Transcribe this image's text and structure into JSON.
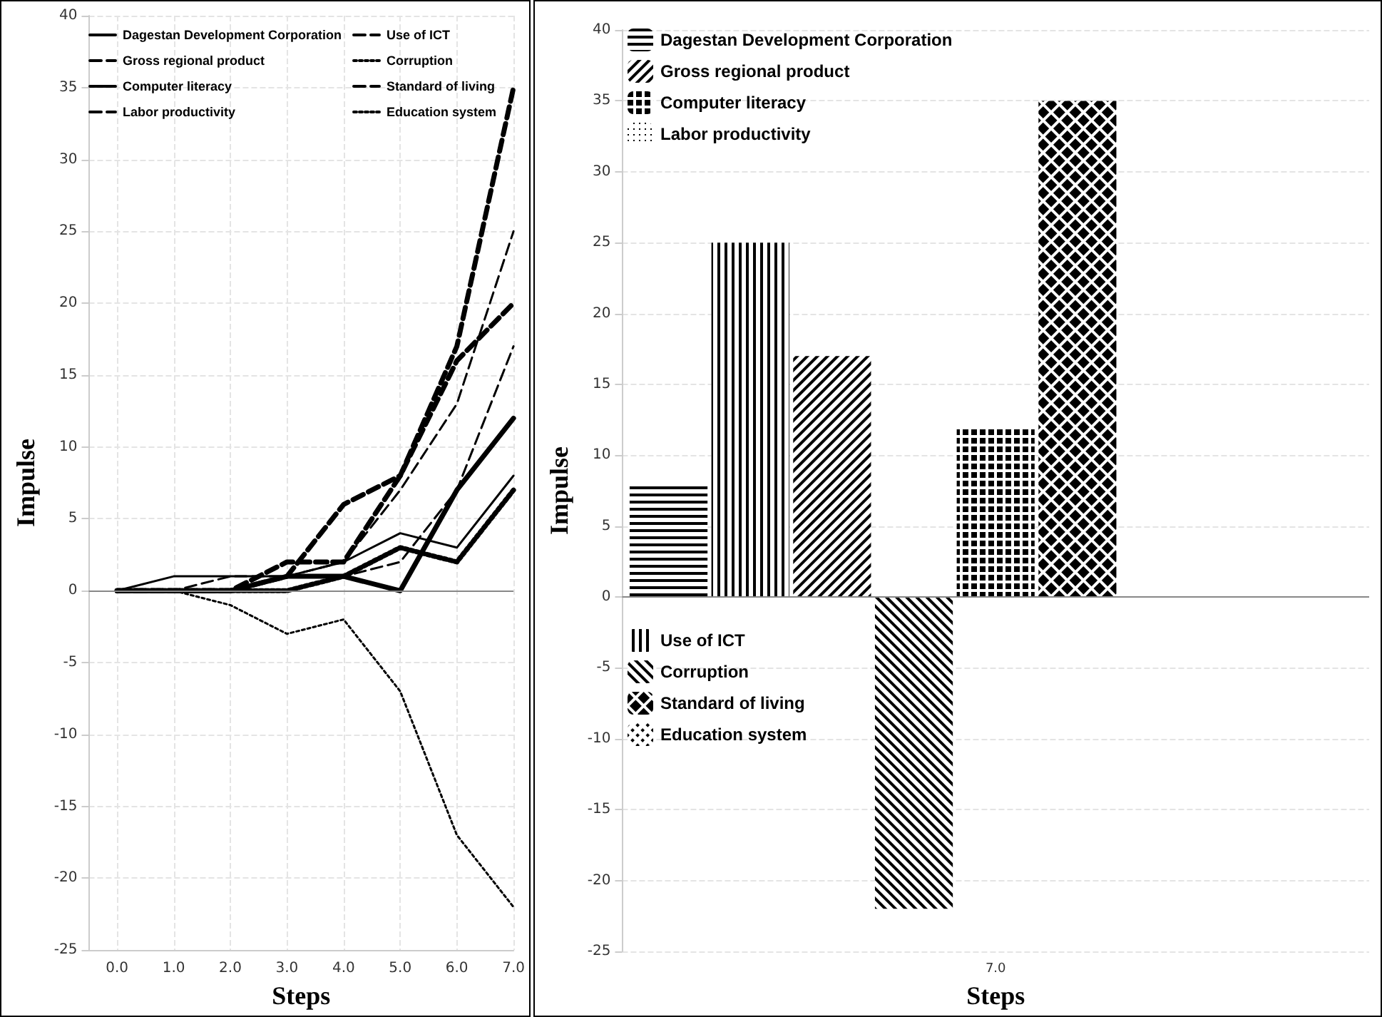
{
  "chart_data": [
    {
      "type": "line",
      "xlabel": "Steps",
      "ylabel": "Impulse",
      "x": [
        0,
        1,
        2,
        3,
        4,
        5,
        6,
        7
      ],
      "xlim": [
        -0.5,
        7
      ],
      "xticks": [
        {
          "value": 0,
          "label": "0.0"
        },
        {
          "value": 1,
          "label": "1.0"
        },
        {
          "value": 2,
          "label": "2.0"
        },
        {
          "value": 3,
          "label": "3.0"
        },
        {
          "value": 4,
          "label": "4.0"
        },
        {
          "value": 5,
          "label": "5.0"
        },
        {
          "value": 6,
          "label": "6.0"
        },
        {
          "value": 7,
          "label": "7.0"
        }
      ],
      "ylim": [
        -25,
        40
      ],
      "yticks": [
        -25,
        -20,
        -15,
        -10,
        -5,
        0,
        5,
        10,
        15,
        20,
        25,
        30,
        35,
        40
      ],
      "grid": true,
      "legend": "top left",
      "marker": "none",
      "series": [
        {
          "name": "Dagestan Development Corporation",
          "color": "#000000",
          "line_style": "solid",
          "values": [
            0,
            1,
            1,
            1,
            2,
            4,
            3,
            8
          ]
        },
        {
          "name": "Use of ICT",
          "color": "#000000",
          "line_style": "dashed",
          "values": [
            0,
            0,
            1,
            1,
            2,
            7,
            13,
            25
          ]
        },
        {
          "name": "Gross regional product",
          "color": "#000000",
          "line_style": "dashed",
          "values": [
            0,
            0,
            0,
            1,
            1,
            2,
            7,
            17
          ]
        },
        {
          "name": "Corruption",
          "color": "#000000",
          "line_style": "dotted",
          "values": [
            0,
            0,
            -1,
            -3,
            -2,
            -7,
            -17,
            -22
          ]
        },
        {
          "name": "Computer literacy",
          "color": "#000000",
          "line_style": "solid",
          "values": [
            0,
            0,
            0,
            1,
            1,
            0,
            7,
            12
          ]
        },
        {
          "name": "Standard of living",
          "color": "#000000",
          "line_style": "dashed",
          "values": [
            0,
            0,
            0,
            1,
            6,
            8,
            17,
            35
          ]
        },
        {
          "name": "Labor productivity",
          "color": "#000000",
          "line_style": "dashed",
          "values": [
            0,
            0,
            0,
            2,
            2,
            8,
            16,
            20
          ]
        },
        {
          "name": "Education system",
          "color": "#000000",
          "line_style": "dotted",
          "values": [
            0,
            0,
            0,
            0,
            1,
            3,
            2,
            7
          ]
        }
      ]
    },
    {
      "type": "bar",
      "xlabel": "Steps",
      "ylabel": "Impulse",
      "categories": [
        "7.0"
      ],
      "ylim": [
        -25,
        40
      ],
      "yticks": [
        -25,
        -20,
        -15,
        -10,
        -5,
        0,
        5,
        10,
        15,
        20,
        25,
        30,
        35,
        40
      ],
      "grid": true,
      "legend": "left",
      "series": [
        {
          "name": "Dagestan Development Corporation",
          "color": "#000000",
          "values": [
            8
          ]
        },
        {
          "name": "Use of ICT",
          "color": "#000000",
          "values": [
            25
          ]
        },
        {
          "name": "Gross regional product",
          "color": "#000000",
          "values": [
            17
          ]
        },
        {
          "name": "Corruption",
          "color": "#000000",
          "values": [
            -22
          ]
        },
        {
          "name": "Computer literacy",
          "color": "#000000",
          "values": [
            12
          ]
        },
        {
          "name": "Standard of living",
          "color": "#000000",
          "values": [
            35
          ]
        },
        {
          "name": "Labor productivity",
          "color": "#000000",
          "values": [
            null
          ]
        },
        {
          "name": "Education system",
          "color": "#000000",
          "values": [
            null
          ]
        }
      ]
    }
  ]
}
